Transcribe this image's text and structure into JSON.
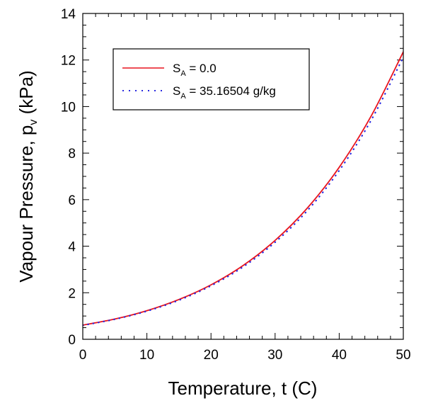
{
  "chart_data": {
    "type": "line",
    "xlabel": "Temperature, t (C)",
    "ylabel": {
      "main": "Vapour Pressure, p",
      "subscript": "v",
      "suffix": " (kPa)"
    },
    "xlim": [
      0,
      50
    ],
    "ylim": [
      0,
      14
    ],
    "xticks": [
      0,
      10,
      20,
      30,
      40,
      50
    ],
    "yticks": [
      0,
      2,
      4,
      6,
      8,
      10,
      12,
      14
    ],
    "grid": false,
    "legend_position": "top-left",
    "x": [
      0,
      5,
      10,
      15,
      20,
      25,
      30,
      35,
      40,
      45,
      50
    ],
    "series": [
      {
        "name": {
          "symbol": "S",
          "subscript": "A",
          "value": " = 0.0"
        },
        "color": "#e8141e",
        "style": "solid",
        "values": [
          0.61,
          0.87,
          1.23,
          1.71,
          2.34,
          3.17,
          4.25,
          5.63,
          7.39,
          9.6,
          12.35
        ]
      },
      {
        "name": {
          "symbol": "S",
          "subscript": "A",
          "value": " = 35.16504 g/kg"
        },
        "color": "#2a2ae0",
        "style": "dotted",
        "values": [
          0.6,
          0.86,
          1.21,
          1.68,
          2.3,
          3.11,
          4.17,
          5.52,
          7.25,
          9.42,
          12.12
        ]
      }
    ]
  }
}
